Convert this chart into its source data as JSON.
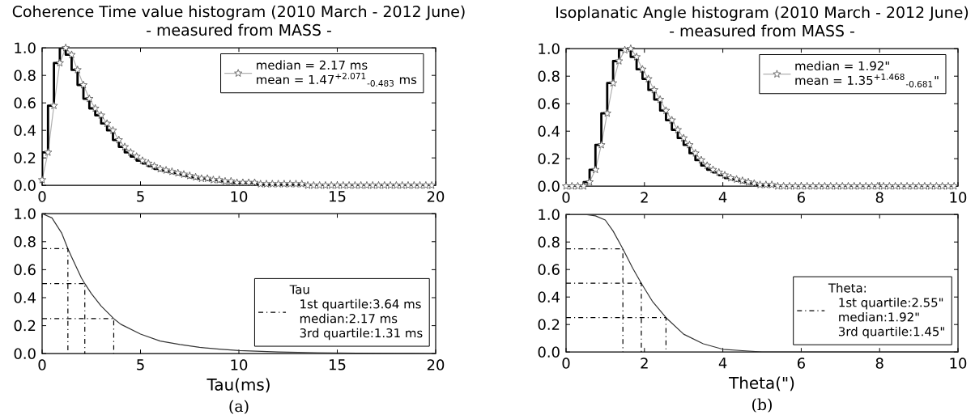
{
  "chart_data": [
    {
      "type": "step",
      "title": "Coherence Time value histogram (2010 March - 2012 June)",
      "subtitle": "- measured from MASS -",
      "annotations": [
        "mean = 1.47$^{+2.071}$$_{-0.483}$ ms"
      ],
      "x": [
        0,
        0.3,
        0.6,
        0.9,
        1.2,
        1.5,
        1.8,
        2.1,
        2.4,
        2.7,
        3,
        3.3,
        3.6,
        3.9,
        4.2,
        4.5,
        4.8,
        5.1,
        5.4,
        5.7,
        6,
        6.3,
        6.6,
        6.9,
        7.2,
        7.5,
        7.8,
        8.1,
        8.4,
        8.7,
        9,
        9.3,
        9.6,
        9.9,
        10.2,
        10.5,
        10.8,
        11.1,
        11.4,
        11.7,
        12,
        12.3,
        12.6,
        12.9,
        13.2,
        13.5,
        13.8,
        14.1,
        14.4,
        14.7,
        15,
        15.3,
        15.6,
        15.9,
        16.2,
        16.5,
        16.8,
        17.1,
        17.4,
        17.7,
        18,
        18.3,
        18.6,
        18.9,
        19.2,
        19.5,
        19.8
      ],
      "series": [
        {
          "type": "line",
          "name": "median = 2.17 ms",
          "color": "#b0b0b0",
          "marker": "star",
          "values": [
            0.04,
            0.24,
            0.58,
            0.89,
            1.0,
            0.95,
            0.84,
            0.73,
            0.63,
            0.56,
            0.51,
            0.45,
            0.4,
            0.33,
            0.28,
            0.24,
            0.21,
            0.18,
            0.16,
            0.14,
            0.12,
            0.11,
            0.1,
            0.09,
            0.08,
            0.07,
            0.06,
            0.05,
            0.05,
            0.04,
            0.04,
            0.03,
            0.03,
            0.02,
            0.02,
            0.02,
            0.02,
            0.01,
            0.01,
            0.01,
            0.01,
            0.01,
            0.01,
            0.01,
            0.01,
            0,
            0,
            0,
            0,
            0,
            0,
            0,
            0,
            0,
            0,
            0,
            0,
            0,
            0,
            0,
            0,
            0,
            0,
            0,
            0,
            0,
            0
          ]
        },
        {
          "type": "step",
          "color": "#000000",
          "values": [
            0.04,
            0.24,
            0.58,
            0.89,
            1.0,
            0.95,
            0.84,
            0.73,
            0.63,
            0.56,
            0.51,
            0.45,
            0.4,
            0.33,
            0.28,
            0.24,
            0.21,
            0.18,
            0.16,
            0.14,
            0.12,
            0.11,
            0.1,
            0.09,
            0.08,
            0.07,
            0.06,
            0.05,
            0.05,
            0.04,
            0.04,
            0.03,
            0.03,
            0.02,
            0.02,
            0.02,
            0.02,
            0.01,
            0.01,
            0.01,
            0.01,
            0.01,
            0.01,
            0.01,
            0.01,
            0,
            0,
            0,
            0,
            0,
            0,
            0,
            0,
            0,
            0,
            0,
            0,
            0,
            0,
            0,
            0,
            0,
            0,
            0,
            0,
            0,
            0
          ]
        }
      ],
      "xlim": [
        0,
        20
      ],
      "ylim": [
        0,
        1
      ],
      "xticks": [
        0,
        5,
        10,
        15,
        20
      ],
      "yticks": [
        {
          "value": 0,
          "label": "0.0"
        },
        {
          "value": 0.2,
          "label": "0.2"
        },
        {
          "value": 0.4,
          "label": "0.4"
        },
        {
          "value": 0.6,
          "label": "0.6"
        },
        {
          "value": 0.8,
          "label": "0.8"
        },
        {
          "value": 1,
          "label": "1.0"
        }
      ],
      "legend": "top right"
    },
    {
      "type": "step",
      "title": "Isoplanatic Angle histogram (2010 March - 2012 June)",
      "subtitle": "- measured from MASS -",
      "annotations": [
        "mean = 1.35$^{+1.468}$$_{-0.681}$\""
      ],
      "x": [
        0,
        0.15,
        0.3,
        0.45,
        0.6,
        0.75,
        0.9,
        1.05,
        1.2,
        1.35,
        1.5,
        1.65,
        1.8,
        1.95,
        2.1,
        2.25,
        2.4,
        2.55,
        2.7,
        2.85,
        3,
        3.15,
        3.3,
        3.45,
        3.6,
        3.75,
        3.9,
        4.05,
        4.2,
        4.35,
        4.5,
        4.65,
        4.8,
        4.95,
        5.1,
        5.25,
        5.4,
        5.55,
        5.7,
        5.85,
        6,
        6.15,
        6.3,
        6.45,
        6.6,
        6.75,
        6.9,
        7.05,
        7.2,
        7.35,
        7.5,
        7.65,
        7.8,
        7.95,
        8.1,
        8.25,
        8.4,
        8.55,
        8.7,
        8.85,
        9,
        9.15,
        9.3,
        9.45,
        9.6,
        9.75,
        9.9
      ],
      "series": [
        {
          "type": "line",
          "name": "median = 1.92\"",
          "color": "#b0b0b0",
          "marker": "star",
          "values": [
            0,
            0,
            0,
            0,
            0.03,
            0.12,
            0.3,
            0.53,
            0.75,
            0.91,
            0.99,
            1.0,
            0.94,
            0.85,
            0.78,
            0.7,
            0.63,
            0.55,
            0.48,
            0.41,
            0.35,
            0.3,
            0.24,
            0.19,
            0.15,
            0.12,
            0.1,
            0.08,
            0.06,
            0.05,
            0.04,
            0.03,
            0.02,
            0.01,
            0.01,
            0.01,
            0,
            0,
            0,
            0,
            0,
            0,
            0,
            0,
            0,
            0,
            0,
            0,
            0,
            0,
            0,
            0,
            0,
            0,
            0,
            0,
            0,
            0,
            0,
            0,
            0,
            0,
            0,
            0,
            0,
            0,
            0
          ]
        },
        {
          "type": "step",
          "color": "#000000",
          "values": [
            0,
            0,
            0,
            0,
            0.03,
            0.12,
            0.3,
            0.53,
            0.75,
            0.91,
            0.99,
            1.0,
            0.94,
            0.85,
            0.78,
            0.7,
            0.63,
            0.55,
            0.48,
            0.41,
            0.35,
            0.3,
            0.24,
            0.19,
            0.15,
            0.12,
            0.1,
            0.08,
            0.06,
            0.05,
            0.04,
            0.03,
            0.02,
            0.01,
            0.01,
            0.01,
            0,
            0,
            0,
            0,
            0,
            0,
            0,
            0,
            0,
            0,
            0,
            0,
            0,
            0,
            0,
            0,
            0,
            0,
            0,
            0,
            0,
            0,
            0,
            0,
            0,
            0,
            0,
            0,
            0,
            0,
            0
          ]
        }
      ],
      "xlim": [
        0,
        10
      ],
      "ylim": [
        0,
        1
      ],
      "xticks": [
        0,
        2,
        4,
        6,
        8,
        10
      ],
      "yticks": [
        {
          "value": 0,
          "label": "0.0"
        },
        {
          "value": 0.2,
          "label": "0.2"
        },
        {
          "value": 0.4,
          "label": "0.4"
        },
        {
          "value": 0.6,
          "label": "0.6"
        },
        {
          "value": 0.8,
          "label": "0.8"
        },
        {
          "value": 1,
          "label": "1.0"
        }
      ],
      "legend": "top right"
    },
    {
      "type": "line",
      "xlabel": "Tau(ms)",
      "annotations": [
        "1st quartile:3.64 ms",
        "median:2.17 ms",
        "3rd quartile:1.31 ms",
        "(a)"
      ],
      "series": [
        {
          "color": "#333333",
          "x": [
            0,
            0.5,
            1,
            1.31,
            1.5,
            2,
            2.17,
            2.5,
            3,
            3.64,
            4,
            5,
            6,
            7,
            8,
            9,
            10,
            12,
            14,
            16,
            18,
            20
          ],
          "values": [
            1,
            0.97,
            0.86,
            0.75,
            0.69,
            0.54,
            0.5,
            0.43,
            0.34,
            0.25,
            0.21,
            0.14,
            0.09,
            0.065,
            0.045,
            0.032,
            0.022,
            0.012,
            0.007,
            0.004,
            0.002,
            0.001
          ]
        },
        {
          "name": "Tau",
          "color": "#000000",
          "line_style": "dashdot",
          "x": [
            0,
            1.31,
            1.31,
            null,
            0,
            2.17,
            2.17,
            null,
            0,
            3.64,
            3.64
          ],
          "values": [
            0.75,
            0.75,
            0,
            null,
            0.5,
            0.5,
            0,
            null,
            0.25,
            0.25,
            0
          ]
        }
      ],
      "xlim": [
        0,
        20
      ],
      "ylim": [
        0,
        1
      ],
      "xticks": [
        0,
        5,
        10,
        15,
        20
      ],
      "yticks": [
        {
          "value": 0,
          "label": "0.0"
        },
        {
          "value": 0.2,
          "label": "0.2"
        },
        {
          "value": 0.4,
          "label": "0.4"
        },
        {
          "value": 0.6,
          "label": "0.6"
        },
        {
          "value": 0.8,
          "label": "0.8"
        },
        {
          "value": 1,
          "label": "1.0"
        }
      ],
      "legend": "bottom right"
    },
    {
      "type": "line",
      "xlabel": "Theta(\")",
      "annotations": [
        "1st quartile:2.55\"",
        "median:1.92\"",
        "3rd quartile:1.45\"",
        "(b)"
      ],
      "series": [
        {
          "color": "#333333",
          "x": [
            0,
            0.5,
            0.75,
            1,
            1.2,
            1.45,
            1.7,
            1.92,
            2.2,
            2.55,
            3,
            3.5,
            4,
            4.5,
            5,
            6,
            8,
            10
          ],
          "values": [
            1,
            1,
            0.99,
            0.96,
            0.88,
            0.75,
            0.61,
            0.5,
            0.37,
            0.25,
            0.13,
            0.06,
            0.02,
            0.01,
            0,
            0,
            0,
            0
          ]
        },
        {
          "name": "Theta:",
          "color": "#000000",
          "line_style": "dashdot",
          "x": [
            0,
            1.45,
            1.45,
            null,
            0,
            1.92,
            1.92,
            null,
            0,
            2.55,
            2.55
          ],
          "values": [
            0.75,
            0.75,
            0,
            null,
            0.5,
            0.5,
            0,
            null,
            0.25,
            0.25,
            0
          ]
        }
      ],
      "xlim": [
        0,
        10
      ],
      "ylim": [
        0,
        1
      ],
      "xticks": [
        0,
        2,
        4,
        6,
        8,
        10
      ],
      "yticks": [
        {
          "value": 0,
          "label": "0.0"
        },
        {
          "value": 0.2,
          "label": "0.2"
        },
        {
          "value": 0.4,
          "label": "0.4"
        },
        {
          "value": 0.6,
          "label": "0.6"
        },
        {
          "value": 0.8,
          "label": "0.8"
        },
        {
          "value": 1,
          "label": "1.0"
        }
      ],
      "legend": "bottom right"
    }
  ]
}
